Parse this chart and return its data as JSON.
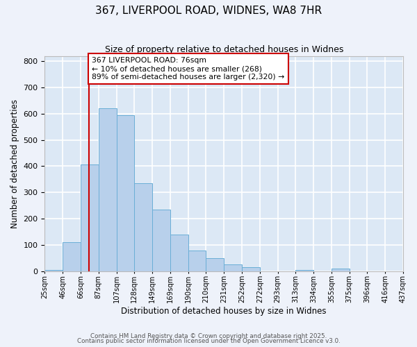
{
  "title1": "367, LIVERPOOL ROAD, WIDNES, WA8 7HR",
  "title2": "Size of property relative to detached houses in Widnes",
  "xlabel": "Distribution of detached houses by size in Widnes",
  "ylabel": "Number of detached properties",
  "bar_values": [
    5,
    110,
    405,
    620,
    595,
    335,
    235,
    138,
    79,
    48,
    25,
    15,
    0,
    0,
    5,
    0,
    8,
    0,
    0,
    0
  ],
  "bin_labels": [
    "25sqm",
    "46sqm",
    "66sqm",
    "87sqm",
    "107sqm",
    "128sqm",
    "149sqm",
    "169sqm",
    "190sqm",
    "210sqm",
    "231sqm",
    "252sqm",
    "272sqm",
    "293sqm",
    "313sqm",
    "334sqm",
    "355sqm",
    "375sqm",
    "396sqm",
    "416sqm",
    "437sqm"
  ],
  "bar_color": "#b8d0eb",
  "bar_edge_color": "#6aaed6",
  "background_color": "#dce8f5",
  "plot_bg_color": "#dce8f5",
  "fig_bg_color": "#eef2fa",
  "grid_color": "#ffffff",
  "vline_label_index": 2,
  "vline_color": "#cc0000",
  "annotation_text": "367 LIVERPOOL ROAD: 76sqm\n← 10% of detached houses are smaller (268)\n89% of semi-detached houses are larger (2,320) →",
  "annotation_box_color": "white",
  "annotation_box_edge_color": "#cc0000",
  "ylim": [
    0,
    820
  ],
  "yticks": [
    0,
    100,
    200,
    300,
    400,
    500,
    600,
    700,
    800
  ],
  "footer1": "Contains HM Land Registry data © Crown copyright and database right 2025.",
  "footer2": "Contains public sector information licensed under the Open Government Licence v3.0."
}
